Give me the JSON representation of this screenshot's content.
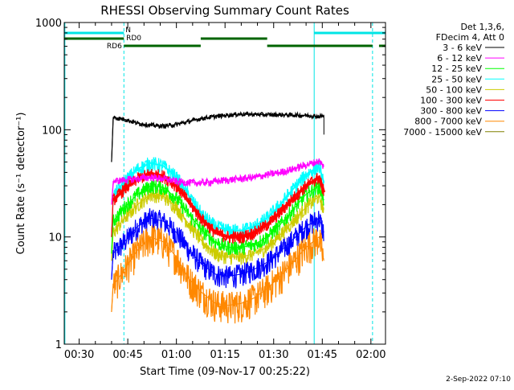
{
  "chart_data": {
    "type": "line",
    "title": "RHESSI Observing Summary Count Rates",
    "xlabel": "Start Time (09-Nov-17 00:25:22)",
    "ylabel": "Count Rate (s⁻¹ detector⁻¹)",
    "x_unit": "minutes of day (UT)",
    "xlim": [
      25.4,
      124.5
    ],
    "ylim": [
      1,
      1000
    ],
    "yscale": "log",
    "x_ticks": [
      {
        "value": 30,
        "label": "00:30"
      },
      {
        "value": 45,
        "label": "00:45"
      },
      {
        "value": 60,
        "label": "01:00"
      },
      {
        "value": 75,
        "label": "01:15"
      },
      {
        "value": 90,
        "label": "01:30"
      },
      {
        "value": 105,
        "label": "01:45"
      },
      {
        "value": 120,
        "label": "02:00"
      }
    ],
    "y_ticks": [
      {
        "value": 1,
        "label": "1"
      },
      {
        "value": 10,
        "label": "10"
      },
      {
        "value": 100,
        "label": "100"
      },
      {
        "value": 1000,
        "label": "1000"
      }
    ],
    "legend_header": [
      "Det 1,3,6,",
      "FDecim 4, Att 0"
    ],
    "legend_position": "right",
    "series": [
      {
        "name": "3 - 6 keV",
        "color": "#000000",
        "x": [
          40.0,
          40.5,
          44,
          48,
          52,
          56,
          60,
          64,
          68,
          72,
          76,
          80,
          84,
          88,
          92,
          96,
          100,
          104,
          105.5,
          105.5
        ],
        "y": [
          50,
          130,
          125,
          115,
          110,
          108,
          112,
          120,
          128,
          133,
          137,
          140,
          139,
          138,
          138,
          137,
          136,
          133,
          135,
          90
        ]
      },
      {
        "name": "6 - 12 keV",
        "color": "#ff00ff",
        "x": [
          40.0,
          40.5,
          44,
          48,
          52,
          56,
          60,
          64,
          68,
          72,
          76,
          80,
          84,
          88,
          92,
          96,
          100,
          104,
          105.5
        ],
        "y": [
          20,
          33,
          34,
          35,
          36,
          35,
          33,
          32,
          32,
          33,
          34,
          35,
          36,
          38,
          40,
          43,
          47,
          51,
          45
        ]
      },
      {
        "name": "12 - 25 keV",
        "color": "#00ff00",
        "x": [
          40.0,
          40.5,
          44,
          48,
          52,
          56,
          60,
          64,
          68,
          72,
          76,
          80,
          84,
          88,
          92,
          96,
          100,
          104,
          105.5
        ],
        "y": [
          7,
          14,
          19,
          25,
          30,
          29,
          23,
          16,
          11.5,
          9,
          8,
          8,
          8.5,
          10,
          13,
          18,
          25,
          30,
          22
        ]
      },
      {
        "name": "25 - 50 keV",
        "color": "#00ffff",
        "x": [
          40.0,
          40.5,
          44,
          48,
          52,
          56,
          60,
          64,
          68,
          72,
          76,
          80,
          84,
          88,
          92,
          96,
          100,
          104,
          105.5
        ],
        "y": [
          10,
          24,
          33,
          43,
          49,
          46,
          36,
          24,
          16,
          12.5,
          11.5,
          11.5,
          12.5,
          15,
          20,
          28,
          38,
          46,
          32
        ]
      },
      {
        "name": "50 - 100 keV",
        "color": "#cccc00",
        "x": [
          40.0,
          40.5,
          44,
          48,
          52,
          56,
          60,
          64,
          68,
          72,
          76,
          80,
          84,
          88,
          92,
          96,
          100,
          104,
          105.5
        ],
        "y": [
          6,
          11,
          15,
          20,
          25,
          24,
          19,
          13,
          9,
          7,
          6.5,
          6.5,
          7,
          8,
          10.5,
          14,
          19,
          24,
          18
        ]
      },
      {
        "name": "100 - 300 keV",
        "color": "#ff0000",
        "x": [
          40.0,
          40.5,
          44,
          48,
          52,
          56,
          60,
          64,
          68,
          72,
          76,
          80,
          84,
          88,
          92,
          96,
          100,
          104,
          105.5
        ],
        "y": [
          10,
          22,
          28,
          35,
          39,
          37,
          30,
          21,
          14.5,
          11,
          10,
          10,
          11,
          13,
          17,
          23,
          30,
          36,
          26
        ]
      },
      {
        "name": "300 - 800 keV",
        "color": "#0000ff",
        "x": [
          40.0,
          40.5,
          44,
          48,
          52,
          56,
          60,
          64,
          68,
          72,
          76,
          80,
          84,
          88,
          92,
          96,
          100,
          104,
          105.5
        ],
        "y": [
          4,
          7,
          9,
          12.5,
          15,
          14,
          11,
          7.5,
          5.5,
          4.5,
          4.3,
          4.5,
          5,
          5.8,
          7.3,
          9.5,
          12.5,
          15,
          11
        ]
      },
      {
        "name": "800 - 7000 keV",
        "color": "#ff8800",
        "x": [
          40.0,
          40.5,
          44,
          48,
          52,
          56,
          60,
          64,
          68,
          72,
          76,
          80,
          84,
          88,
          92,
          96,
          100,
          104,
          105.5
        ],
        "y": [
          2,
          3.5,
          5,
          7.5,
          10,
          9,
          6.5,
          4,
          3,
          2.4,
          2.3,
          2.4,
          2.7,
          3.3,
          4.3,
          5.8,
          8,
          10,
          6
        ]
      },
      {
        "name": "7000 - 15000 keV",
        "color": "#808000",
        "x": [],
        "y": []
      }
    ],
    "vertical_lines": [
      {
        "x": 25.6,
        "style": "solid",
        "color": "#00e5e5"
      },
      {
        "x": 43.8,
        "style": "dashed",
        "color": "#00e5e5"
      },
      {
        "x": 102.5,
        "style": "solid",
        "color": "#00e5e5"
      },
      {
        "x": 120.5,
        "style": "dashed",
        "color": "#00e5e5"
      }
    ],
    "flag_bars": [
      {
        "name": "N",
        "color": "#00e5e5",
        "label_x": 44.5,
        "segments": [
          [
            25.4,
            43.8
          ],
          [
            102.5,
            124.5
          ]
        ]
      },
      {
        "name": "RD0",
        "color": "#006400",
        "label_x": 45.5,
        "segments": [
          [
            25.4,
            43.8
          ],
          [
            67.5,
            88
          ]
        ],
        "label_position": "above"
      },
      {
        "name": "RD6",
        "color": "#006400",
        "label_x": 36,
        "segments": [
          [
            43.8,
            67.5
          ],
          [
            88,
            120.5
          ],
          [
            122.5,
            124.5
          ]
        ],
        "label_position": "left"
      }
    ]
  },
  "footer": {
    "timestamp": "2-Sep-2022 07:10"
  }
}
